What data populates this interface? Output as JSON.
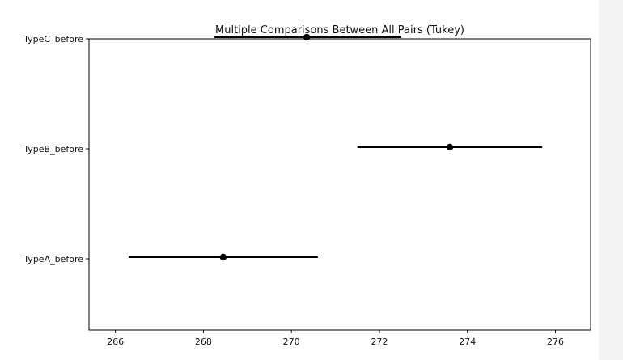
{
  "chart_data": {
    "type": "errorbar",
    "title": "Multiple Comparisons Between All Pairs (Tukey)",
    "xlabel": "",
    "ylabel": "",
    "xlim": [
      265.4,
      276.8
    ],
    "x_ticks": [
      266,
      268,
      270,
      272,
      274,
      276
    ],
    "categories": [
      "TypeA_before",
      "TypeB_before",
      "TypeC_before"
    ],
    "means": [
      268.45,
      273.6,
      270.35
    ],
    "lower": [
      266.3,
      271.5,
      268.25
    ],
    "upper": [
      270.6,
      275.7,
      272.5
    ],
    "colors": {
      "marker": "#000000",
      "line": "#000000",
      "axis": "#000000"
    },
    "grid": false
  }
}
